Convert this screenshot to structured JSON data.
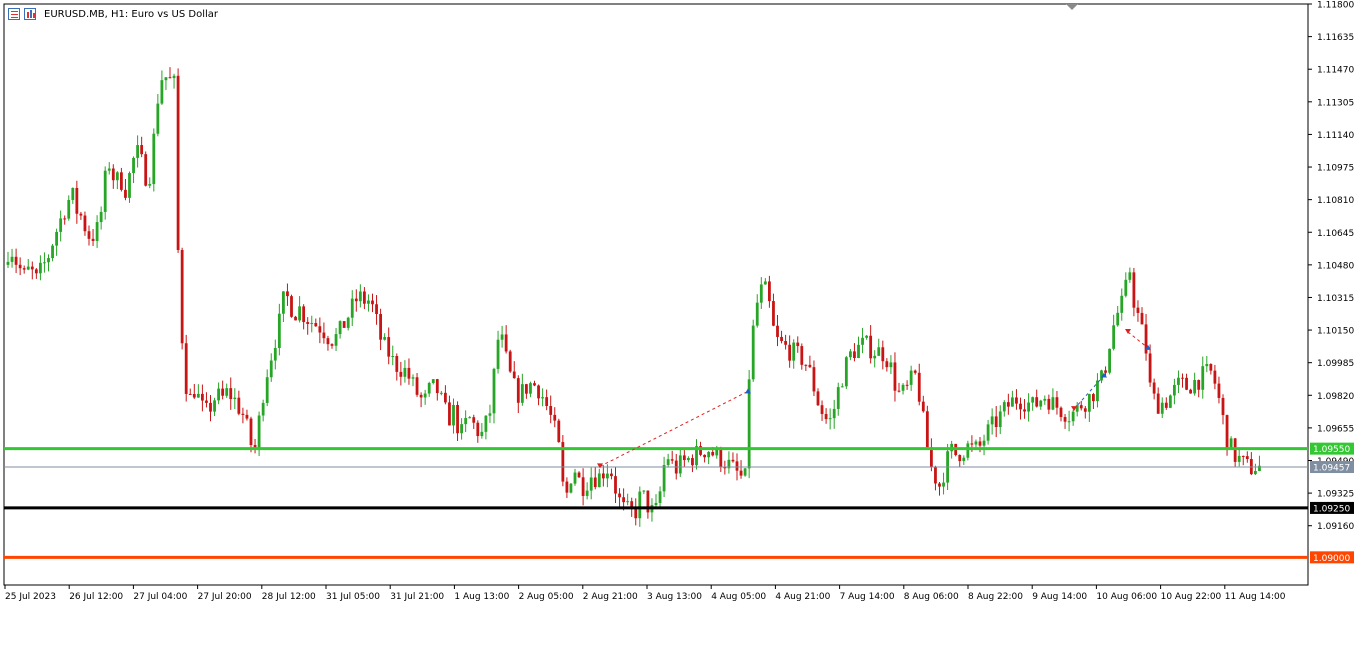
{
  "header": {
    "title": "EURUSD.MB, H1:  Euro vs US Dollar",
    "icons": [
      "trade-list-icon",
      "chart-bars-icon"
    ]
  },
  "colors": {
    "bull": "#26a526",
    "bear": "#c81414",
    "support_line": "#33c833",
    "black_line": "#000000",
    "orange_line": "#ff4500",
    "current_price_line": "#7f8ea0",
    "arrow_blue": "#1f5fc8",
    "arrow_red": "#e02020"
  },
  "chart_data": {
    "type": "candlestick",
    "symbol": "EURUSD.MB",
    "timeframe": "H1",
    "title": "EURUSD.MB, H1:  Euro vs US Dollar",
    "ylim": [
      1.0886,
      1.118
    ],
    "y_ticks": [
      "1.11800",
      "1.11635",
      "1.11470",
      "1.11305",
      "1.11140",
      "1.10975",
      "1.10810",
      "1.10645",
      "1.10480",
      "1.10315",
      "1.10150",
      "1.09985",
      "1.09820",
      "1.09655",
      "1.09490",
      "1.09325",
      "1.09160"
    ],
    "x_ticks": [
      "25 Jul 2023",
      "26 Jul 12:00",
      "27 Jul 04:00",
      "27 Jul 20:00",
      "28 Jul 12:00",
      "31 Jul 05:00",
      "31 Jul 21:00",
      "1 Aug 13:00",
      "2 Aug 05:00",
      "2 Aug 21:00",
      "3 Aug 13:00",
      "4 Aug 05:00",
      "4 Aug 21:00",
      "7 Aug 14:00",
      "8 Aug 06:00",
      "8 Aug 22:00",
      "9 Aug 14:00",
      "10 Aug 06:00",
      "10 Aug 22:00",
      "11 Aug 14:00"
    ],
    "close_path": [
      [
        0,
        1.104
      ],
      [
        6,
        1.1052
      ],
      [
        10,
        1.1058
      ],
      [
        16,
        1.105
      ],
      [
        20,
        1.1046
      ],
      [
        24,
        1.1042
      ],
      [
        30,
        1.1046
      ],
      [
        36,
        1.104
      ],
      [
        42,
        1.1046
      ],
      [
        48,
        1.1052
      ],
      [
        54,
        1.1062
      ],
      [
        60,
        1.107
      ],
      [
        66,
        1.1078
      ],
      [
        72,
        1.1084
      ],
      [
        76,
        1.1076
      ],
      [
        80,
        1.1074
      ],
      [
        86,
        1.1066
      ],
      [
        90,
        1.1062
      ],
      [
        96,
        1.1064
      ],
      [
        100,
        1.107
      ],
      [
        104,
        1.1086
      ],
      [
        108,
        1.1102
      ],
      [
        112,
        1.1094
      ],
      [
        116,
        1.109
      ],
      [
        120,
        1.1092
      ],
      [
        126,
        1.1086
      ],
      [
        132,
        1.1098
      ],
      [
        136,
        1.1106
      ],
      [
        140,
        1.1102
      ],
      [
        144,
        1.1096
      ],
      [
        148,
        1.109
      ],
      [
        152,
        1.11
      ],
      [
        156,
        1.1126
      ],
      [
        160,
        1.114
      ],
      [
        164,
        1.1146
      ],
      [
        168,
        1.114
      ],
      [
        172,
        1.1142
      ],
      [
        175,
        1.1138
      ],
      [
        178,
        1.1056
      ],
      [
        181,
        1.102
      ],
      [
        185,
        1.099
      ],
      [
        190,
        1.098
      ],
      [
        195,
        1.0986
      ],
      [
        200,
        1.0978
      ],
      [
        205,
        1.0972
      ],
      [
        210,
        1.0976
      ],
      [
        216,
        1.0982
      ],
      [
        222,
        1.098
      ],
      [
        228,
        1.0984
      ],
      [
        234,
        1.098
      ],
      [
        240,
        1.0975
      ],
      [
        245,
        1.097
      ],
      [
        250,
        1.0958
      ],
      [
        255,
        1.0955
      ],
      [
        260,
        1.0972
      ],
      [
        265,
        1.099
      ],
      [
        270,
        1.1
      ],
      [
        275,
        1.101
      ],
      [
        280,
        1.102
      ],
      [
        285,
        1.1034
      ],
      [
        290,
        1.1028
      ],
      [
        295,
        1.1024
      ],
      [
        300,
        1.1026
      ],
      [
        305,
        1.1022
      ],
      [
        310,
        1.102
      ],
      [
        316,
        1.1018
      ],
      [
        322,
        1.1016
      ],
      [
        328,
        1.1012
      ],
      [
        334,
        1.101
      ],
      [
        340,
        1.1014
      ],
      [
        346,
        1.102
      ],
      [
        352,
        1.1026
      ],
      [
        358,
        1.1032
      ],
      [
        364,
        1.103
      ],
      [
        370,
        1.103
      ],
      [
        374,
        1.1024
      ],
      [
        378,
        1.1016
      ],
      [
        382,
        1.1008
      ],
      [
        388,
        1.1004
      ],
      [
        394,
        1.0998
      ],
      [
        400,
        1.0996
      ],
      [
        406,
        1.0994
      ],
      [
        412,
        1.0988
      ],
      [
        418,
        1.0982
      ],
      [
        424,
        1.0978
      ],
      [
        430,
        1.0985
      ],
      [
        436,
        1.0986
      ],
      [
        442,
        1.0978
      ],
      [
        448,
        1.097
      ],
      [
        454,
        1.0974
      ],
      [
        458,
        1.0966
      ],
      [
        462,
        1.0962
      ],
      [
        466,
        1.0968
      ],
      [
        470,
        1.097
      ],
      [
        476,
        1.0965
      ],
      [
        482,
        1.0962
      ],
      [
        488,
        1.097
      ],
      [
        492,
        1.0978
      ],
      [
        496,
        1.1006
      ],
      [
        500,
        1.1014
      ],
      [
        504,
        1.1004
      ],
      [
        508,
        1.0996
      ],
      [
        512,
        1.0988
      ],
      [
        516,
        1.0984
      ],
      [
        520,
        1.0982
      ],
      [
        526,
        1.0986
      ],
      [
        532,
        1.0988
      ],
      [
        538,
        1.0986
      ],
      [
        544,
        1.098
      ],
      [
        550,
        1.0972
      ],
      [
        556,
        1.0962
      ],
      [
        560,
        1.0952
      ],
      [
        563,
        1.0935
      ],
      [
        566,
        1.093
      ],
      [
        570,
        1.094
      ],
      [
        574,
        1.0946
      ],
      [
        578,
        1.094
      ],
      [
        582,
        1.0936
      ],
      [
        586,
        1.0938
      ],
      [
        592,
        1.0942
      ],
      [
        598,
        1.094
      ],
      [
        604,
        1.0944
      ],
      [
        610,
        1.0946
      ],
      [
        614,
        1.0938
      ],
      [
        618,
        1.093
      ],
      [
        622,
        1.0926
      ],
      [
        626,
        1.0922
      ],
      [
        630,
        1.0925
      ],
      [
        634,
        1.092
      ],
      [
        638,
        1.0928
      ],
      [
        642,
        1.0932
      ],
      [
        646,
        1.0928
      ],
      [
        650,
        1.0924
      ],
      [
        654,
        1.0922
      ],
      [
        658,
        1.0925
      ],
      [
        662,
        1.094
      ],
      [
        666,
        1.0952
      ],
      [
        670,
        1.095
      ],
      [
        674,
        1.0944
      ],
      [
        678,
        1.0946
      ],
      [
        684,
        1.0948
      ],
      [
        690,
        1.095
      ],
      [
        696,
        1.0952
      ],
      [
        702,
        1.0954
      ],
      [
        708,
        1.0955
      ],
      [
        714,
        1.0952
      ],
      [
        720,
        1.095
      ],
      [
        726,
        1.0948
      ],
      [
        730,
        1.0946
      ],
      [
        734,
        1.0944
      ],
      [
        738,
        1.0942
      ],
      [
        742,
        1.094
      ],
      [
        745,
        1.0938
      ],
      [
        748,
        1.0985
      ],
      [
        752,
        1.101
      ],
      [
        756,
        1.1026
      ],
      [
        760,
        1.1034
      ],
      [
        764,
        1.1036
      ],
      [
        768,
        1.1032
      ],
      [
        772,
        1.1018
      ],
      [
        776,
        1.101
      ],
      [
        780,
        1.1008
      ],
      [
        786,
        1.1006
      ],
      [
        792,
        1.1004
      ],
      [
        798,
        1.1002
      ],
      [
        804,
        1.1
      ],
      [
        808,
        1.0996
      ],
      [
        812,
        1.099
      ],
      [
        816,
        1.0982
      ],
      [
        820,
        1.0976
      ],
      [
        824,
        1.0972
      ],
      [
        828,
        1.0968
      ],
      [
        832,
        1.097
      ],
      [
        836,
        1.098
      ],
      [
        840,
        1.0988
      ],
      [
        844,
        1.0994
      ],
      [
        848,
        1.1
      ],
      [
        852,
        1.1004
      ],
      [
        858,
        1.1006
      ],
      [
        864,
        1.1008
      ],
      [
        870,
        1.1006
      ],
      [
        876,
        1.1004
      ],
      [
        882,
        1.1004
      ],
      [
        888,
        1.1
      ],
      [
        892,
        1.0994
      ],
      [
        896,
        1.0986
      ],
      [
        900,
        1.0982
      ],
      [
        906,
        1.0984
      ],
      [
        912,
        1.099
      ],
      [
        916,
        1.0992
      ],
      [
        920,
        1.098
      ],
      [
        924,
        1.0966
      ],
      [
        928,
        1.0954
      ],
      [
        932,
        1.0944
      ],
      [
        936,
        1.094
      ],
      [
        940,
        1.0936
      ],
      [
        944,
        1.0944
      ],
      [
        948,
        1.095
      ],
      [
        952,
        1.0954
      ],
      [
        956,
        1.0952
      ],
      [
        962,
        1.0954
      ],
      [
        968,
        1.0956
      ],
      [
        974,
        1.0954
      ],
      [
        980,
        1.0956
      ],
      [
        986,
        1.0962
      ],
      [
        992,
        1.0966
      ],
      [
        998,
        1.097
      ],
      [
        1004,
        1.0974
      ],
      [
        1010,
        1.0978
      ],
      [
        1016,
        1.098
      ],
      [
        1022,
        1.098
      ],
      [
        1028,
        1.0978
      ],
      [
        1034,
        1.0976
      ],
      [
        1040,
        1.098
      ],
      [
        1046,
        1.0982
      ],
      [
        1052,
        1.0978
      ],
      [
        1058,
        1.0976
      ],
      [
        1064,
        1.0974
      ],
      [
        1070,
        1.0972
      ],
      [
        1076,
        1.0974
      ],
      [
        1082,
        1.0978
      ],
      [
        1088,
        1.098
      ],
      [
        1094,
        1.0984
      ],
      [
        1098,
        1.0988
      ],
      [
        1102,
        1.099
      ],
      [
        1106,
        1.0998
      ],
      [
        1110,
        1.101
      ],
      [
        1114,
        1.1018
      ],
      [
        1118,
        1.1024
      ],
      [
        1122,
        1.1028
      ],
      [
        1126,
        1.1036
      ],
      [
        1129,
        1.105
      ],
      [
        1132,
        1.1034
      ],
      [
        1136,
        1.1026
      ],
      [
        1140,
        1.1018
      ],
      [
        1144,
        1.101
      ],
      [
        1148,
        1.1
      ],
      [
        1150,
        1.0986
      ],
      [
        1154,
        1.098
      ],
      [
        1158,
        1.0978
      ],
      [
        1162,
        1.0978
      ],
      [
        1168,
        1.098
      ],
      [
        1174,
        1.0984
      ],
      [
        1180,
        1.0988
      ],
      [
        1186,
        1.0986
      ],
      [
        1192,
        1.0988
      ],
      [
        1198,
        1.099
      ],
      [
        1204,
        1.0992
      ],
      [
        1210,
        1.0994
      ],
      [
        1214,
        1.099
      ],
      [
        1218,
        1.0982
      ],
      [
        1222,
        1.0972
      ],
      [
        1226,
        1.0962
      ],
      [
        1230,
        1.0956
      ],
      [
        1234,
        1.0952
      ],
      [
        1238,
        1.095
      ],
      [
        1242,
        1.0948
      ],
      [
        1246,
        1.0946
      ],
      [
        1250,
        1.0945
      ],
      [
        1254,
        1.0946
      ],
      [
        1258,
        1.0946
      ],
      [
        1262,
        1.0945
      ]
    ],
    "horizontal_lines": [
      {
        "price": 1.0955,
        "label": "1.09550",
        "style": "green"
      },
      {
        "price": 1.09457,
        "label": "1.09457",
        "style": "current"
      },
      {
        "price": 1.0925,
        "label": "1.09250",
        "style": "black"
      },
      {
        "price": 1.09,
        "label": "1.09000",
        "style": "orange"
      }
    ],
    "trades": [
      {
        "from": [
          600,
          1.0946
        ],
        "to": [
          748,
          1.0984
        ],
        "kind": "sell"
      },
      {
        "from": [
          1074,
          1.0975
        ],
        "to": [
          1104,
          1.0992
        ],
        "kind": "buy"
      },
      {
        "from": [
          1128,
          1.1014
        ],
        "to": [
          1148,
          1.1006
        ],
        "kind": "sell"
      }
    ],
    "grid": false
  }
}
